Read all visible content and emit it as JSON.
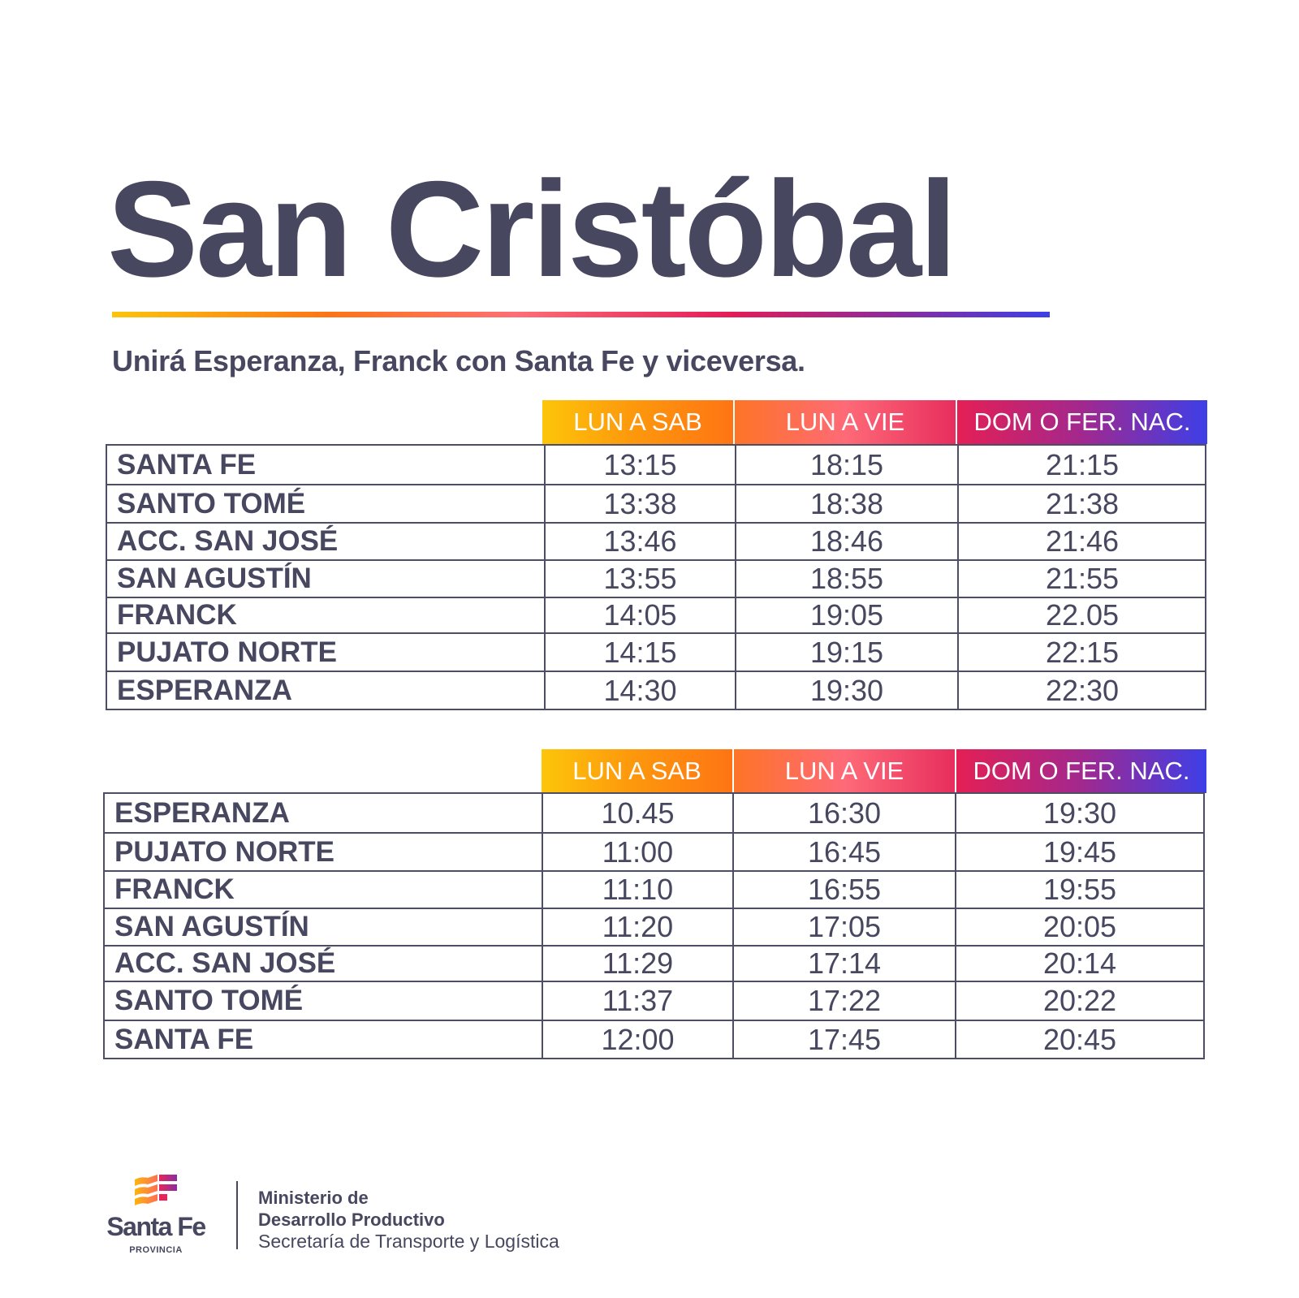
{
  "title": "San Cristóbal",
  "subtitle": "Unirá Esperanza, Franck con Santa Fe y viceversa.",
  "colors": {
    "text": "#474760",
    "gradient": [
      "#fcc40c",
      "#fd7414",
      "#fe6e74",
      "#e41c58",
      "#932a96",
      "#3d3fe8"
    ]
  },
  "tables": [
    {
      "headers": [
        "LUN A SAB",
        "LUN A VIE",
        "DOM O FER. NAC."
      ],
      "rows": [
        {
          "stop": "SANTA FE",
          "times": [
            "13:15",
            "18:15",
            "21:15"
          ]
        },
        {
          "stop": "SANTO TOMÉ",
          "times": [
            "13:38",
            "18:38",
            "21:38"
          ]
        },
        {
          "stop": "ACC. SAN JOSÉ",
          "times": [
            "13:46",
            "18:46",
            "21:46"
          ]
        },
        {
          "stop": "SAN AGUSTÍN",
          "times": [
            "13:55",
            "18:55",
            "21:55"
          ]
        },
        {
          "stop": "FRANCK",
          "times": [
            "14:05",
            "19:05",
            "22.05"
          ]
        },
        {
          "stop": "PUJATO NORTE",
          "times": [
            "14:15",
            "19:15",
            "22:15"
          ]
        },
        {
          "stop": "ESPERANZA",
          "times": [
            "14:30",
            "19:30",
            "22:30"
          ]
        }
      ]
    },
    {
      "headers": [
        "LUN A SAB",
        "LUN A VIE",
        "DOM O FER. NAC."
      ],
      "rows": [
        {
          "stop": "ESPERANZA",
          "times": [
            "10.45",
            "16:30",
            "19:30"
          ]
        },
        {
          "stop": "PUJATO NORTE",
          "times": [
            "11:00",
            "16:45",
            "19:45"
          ]
        },
        {
          "stop": "FRANCK",
          "times": [
            "11:10",
            "16:55",
            "19:55"
          ]
        },
        {
          "stop": "SAN AGUSTÍN",
          "times": [
            "11:20",
            "17:05",
            "20:05"
          ]
        },
        {
          "stop": "ACC. SAN JOSÉ",
          "times": [
            "11:29",
            "17:14",
            "20:14"
          ]
        },
        {
          "stop": "SANTO TOMÉ",
          "times": [
            "11:37",
            "17:22",
            "20:22"
          ]
        },
        {
          "stop": "SANTA FE",
          "times": [
            "12:00",
            "17:45",
            "20:45"
          ]
        }
      ]
    }
  ],
  "footer": {
    "logo_name": "Santa Fe",
    "logo_sub": "PROVINCIA",
    "logo_icon": "santa-fe-flag-icon",
    "ministry_line1": "Ministerio de",
    "ministry_line2": "Desarrollo Productivo",
    "secretariat": "Secretaría de Transporte y Logística"
  }
}
